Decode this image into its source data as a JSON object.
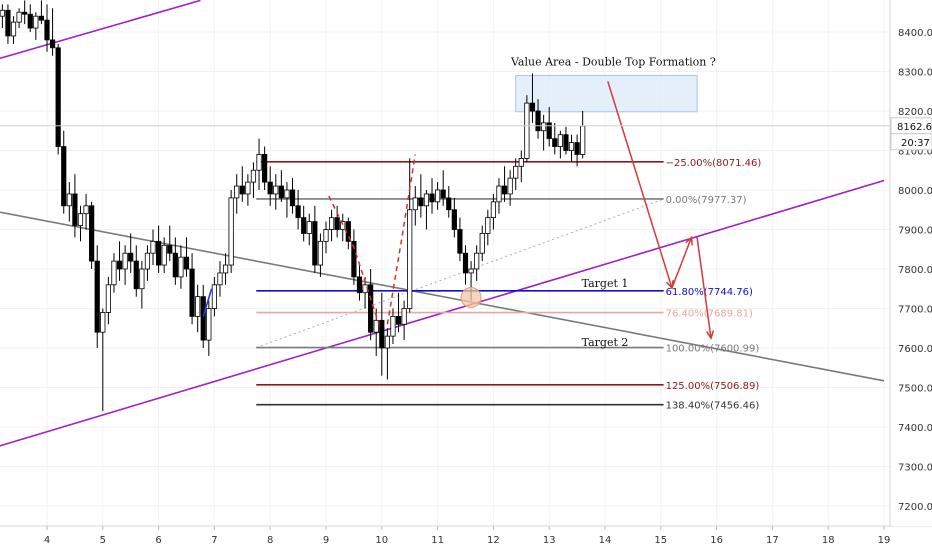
{
  "chart_data": {
    "type": "candlestick",
    "y_axis": {
      "ticks": [
        "8400.00",
        "8300.00",
        "8200.00",
        "8100.00",
        "8000.00",
        "7900.00",
        "7800.00",
        "7700.00",
        "7600.00",
        "7500.00",
        "7400.00",
        "7300.00",
        "7200.00"
      ],
      "range": [
        7150,
        8480
      ]
    },
    "x_axis": {
      "ticks": [
        "4",
        "5",
        "6",
        "7",
        "8",
        "9",
        "10",
        "11",
        "12",
        "13",
        "14",
        "15",
        "16",
        "17",
        "18",
        "19"
      ],
      "range": [
        3.2,
        19.0
      ]
    },
    "price_tags": [
      {
        "label": "8162.63",
        "kind": "last_price"
      },
      {
        "label": "20:37",
        "kind": "countdown"
      }
    ],
    "fib_levels": [
      {
        "label": "−25.00%(8071.46)",
        "value": 8071.46,
        "x_start": 7.75,
        "x_end": 15.05,
        "color": "#8b1a1a"
      },
      {
        "label": "0.00%(7977.37)",
        "value": 7977.37,
        "x_start": 7.75,
        "x_end": 15.05,
        "color": "#7a7a7a"
      },
      {
        "label": "61.80%(7744.76)",
        "value": 7744.76,
        "x_start": 7.75,
        "x_end": 15.05,
        "color": "#1010cc"
      },
      {
        "label": "76.40%(7689.81)",
        "value": 7689.81,
        "x_start": 7.75,
        "x_end": 15.05,
        "color": "#e8a8a0"
      },
      {
        "label": "100.00%(7600.99)",
        "value": 7600.99,
        "x_start": 7.75,
        "x_end": 15.05,
        "color": "#7a7a7a"
      },
      {
        "label": "125.00%(7506.89)",
        "value": 7506.89,
        "x_start": 7.75,
        "x_end": 15.05,
        "color": "#8b1a1a"
      },
      {
        "label": "138.40%(7456.46)",
        "value": 7456.46,
        "x_start": 7.75,
        "x_end": 15.05,
        "color": "#333333"
      }
    ],
    "trendlines": [
      {
        "name": "upper-channel",
        "points": [
          [
            3.15,
            8333
          ],
          [
            6.75,
            8480
          ]
        ],
        "color": "#a020c8"
      },
      {
        "name": "lower-channel",
        "points": [
          [
            3.15,
            7352
          ],
          [
            19.0,
            8024
          ]
        ],
        "color": "#a020c8"
      },
      {
        "name": "descending-line",
        "points": [
          [
            3.15,
            7944
          ],
          [
            19.0,
            7517
          ]
        ],
        "color": "#7a7a7a"
      },
      {
        "name": "dotted-trend",
        "points": [
          [
            7.75,
            7601
          ],
          [
            15.05,
            7977
          ]
        ],
        "color": "#aaaaaa",
        "style": "dotted"
      }
    ],
    "annotations": [
      {
        "text": "Value Area - Double Top Formation ?",
        "x": 14.15,
        "y": 8315
      },
      {
        "text": "Target 1",
        "x": 14.0,
        "y": 7755
      },
      {
        "text": "Target 2",
        "x": 14.0,
        "y": 7605
      }
    ],
    "value_area": {
      "x": [
        12.4,
        15.65
      ],
      "y": [
        8198,
        8290
      ]
    },
    "circle_marker": {
      "x": 11.6,
      "y": 7728
    },
    "candles": [
      [
        3.2,
        8440,
        8470,
        8410,
        8455
      ],
      [
        3.3,
        8455,
        8470,
        8370,
        8390
      ],
      [
        3.4,
        8390,
        8440,
        8370,
        8425
      ],
      [
        3.5,
        8425,
        8460,
        8410,
        8450
      ],
      [
        3.6,
        8450,
        8480,
        8420,
        8445
      ],
      [
        3.7,
        8445,
        8470,
        8400,
        8410
      ],
      [
        3.8,
        8410,
        8450,
        8380,
        8440
      ],
      [
        3.9,
        8440,
        8480,
        8420,
        8430
      ],
      [
        4.0,
        8430,
        8470,
        8350,
        8380
      ],
      [
        4.1,
        8380,
        8460,
        8340,
        8360
      ],
      [
        4.2,
        8360,
        8370,
        8090,
        8110
      ],
      [
        4.3,
        8110,
        8150,
        7940,
        7960
      ],
      [
        4.4,
        7960,
        8020,
        7920,
        7990
      ],
      [
        4.5,
        7990,
        8040,
        7880,
        7910
      ],
      [
        4.6,
        7910,
        7960,
        7870,
        7940
      ],
      [
        4.7,
        7940,
        7990,
        7900,
        7960
      ],
      [
        4.8,
        7960,
        7970,
        7800,
        7820
      ],
      [
        4.9,
        7820,
        7860,
        7600,
        7640
      ],
      [
        5.0,
        7640,
        7700,
        7440,
        7690
      ],
      [
        5.1,
        7690,
        7780,
        7660,
        7760
      ],
      [
        5.2,
        7760,
        7840,
        7740,
        7820
      ],
      [
        5.3,
        7820,
        7870,
        7770,
        7800
      ],
      [
        5.4,
        7800,
        7860,
        7760,
        7840
      ],
      [
        5.5,
        7840,
        7890,
        7790,
        7820
      ],
      [
        5.6,
        7820,
        7860,
        7730,
        7750
      ],
      [
        5.7,
        7750,
        7820,
        7700,
        7800
      ],
      [
        5.8,
        7800,
        7860,
        7770,
        7840
      ],
      [
        5.9,
        7840,
        7900,
        7810,
        7870
      ],
      [
        6.0,
        7870,
        7910,
        7790,
        7810
      ],
      [
        6.1,
        7810,
        7880,
        7790,
        7860
      ],
      [
        6.2,
        7860,
        7910,
        7820,
        7840
      ],
      [
        6.3,
        7840,
        7880,
        7760,
        7780
      ],
      [
        6.4,
        7780,
        7860,
        7750,
        7830
      ],
      [
        6.5,
        7830,
        7880,
        7780,
        7800
      ],
      [
        6.6,
        7800,
        7840,
        7660,
        7680
      ],
      [
        6.7,
        7680,
        7760,
        7640,
        7730
      ],
      [
        6.8,
        7730,
        7760,
        7600,
        7620
      ],
      [
        6.9,
        7620,
        7720,
        7580,
        7700
      ],
      [
        7.0,
        7700,
        7780,
        7680,
        7760
      ],
      [
        7.1,
        7760,
        7820,
        7730,
        7790
      ],
      [
        7.2,
        7790,
        7840,
        7760,
        7810
      ],
      [
        7.3,
        7810,
        8000,
        7790,
        7980
      ],
      [
        7.4,
        7980,
        8040,
        7940,
        8010
      ],
      [
        7.5,
        8010,
        8060,
        7970,
        7990
      ],
      [
        7.6,
        7990,
        8040,
        7960,
        8020
      ],
      [
        7.7,
        8020,
        8070,
        7980,
        8050
      ],
      [
        7.8,
        8050,
        8130,
        8000,
        8090
      ],
      [
        7.9,
        8090,
        8110,
        8000,
        8020
      ],
      [
        8.0,
        8020,
        8060,
        7960,
        7990
      ],
      [
        8.1,
        7990,
        8040,
        7950,
        8010
      ],
      [
        8.2,
        8010,
        8050,
        7970,
        7980
      ],
      [
        8.3,
        7980,
        8020,
        7930,
        8000
      ],
      [
        8.4,
        8000,
        8030,
        7940,
        7960
      ],
      [
        8.5,
        7960,
        8000,
        7900,
        7930
      ],
      [
        8.6,
        7930,
        7960,
        7870,
        7890
      ],
      [
        8.7,
        7890,
        7940,
        7860,
        7920
      ],
      [
        8.8,
        7920,
        7960,
        7790,
        7810
      ],
      [
        8.9,
        7810,
        7890,
        7780,
        7870
      ],
      [
        9.0,
        7870,
        7920,
        7840,
        7900
      ],
      [
        9.1,
        7900,
        7950,
        7870,
        7930
      ],
      [
        9.2,
        7930,
        7960,
        7880,
        7900
      ],
      [
        9.3,
        7900,
        7940,
        7870,
        7920
      ],
      [
        9.4,
        7920,
        7930,
        7850,
        7870
      ],
      [
        9.5,
        7870,
        7900,
        7760,
        7780
      ],
      [
        9.6,
        7780,
        7810,
        7720,
        7740
      ],
      [
        9.7,
        7740,
        7780,
        7700,
        7760
      ],
      [
        9.8,
        7760,
        7800,
        7620,
        7640
      ],
      [
        9.9,
        7640,
        7700,
        7580,
        7670
      ],
      [
        10.0,
        7670,
        7740,
        7530,
        7600
      ],
      [
        10.1,
        7600,
        7650,
        7520,
        7630
      ],
      [
        10.2,
        7630,
        7700,
        7610,
        7680
      ],
      [
        10.3,
        7680,
        7740,
        7640,
        7660
      ],
      [
        10.4,
        7660,
        7720,
        7620,
        7700
      ],
      [
        10.5,
        7700,
        8080,
        7690,
        7950
      ],
      [
        10.6,
        7950,
        8010,
        7910,
        7980
      ],
      [
        10.7,
        7980,
        8040,
        7930,
        7960
      ],
      [
        10.8,
        7960,
        8000,
        7900,
        7990
      ],
      [
        10.9,
        7990,
        8030,
        7940,
        7970
      ],
      [
        11.0,
        7970,
        8020,
        7950,
        8000
      ],
      [
        11.1,
        8000,
        8050,
        7960,
        7980
      ],
      [
        11.2,
        7980,
        8010,
        7930,
        7950
      ],
      [
        11.3,
        7950,
        7980,
        7880,
        7900
      ],
      [
        11.4,
        7900,
        7930,
        7820,
        7840
      ],
      [
        11.5,
        7840,
        7860,
        7760,
        7790
      ],
      [
        11.6,
        7790,
        7820,
        7720,
        7800
      ],
      [
        11.7,
        7800,
        7860,
        7770,
        7840
      ],
      [
        11.8,
        7840,
        7910,
        7820,
        7890
      ],
      [
        11.9,
        7890,
        7950,
        7860,
        7930
      ],
      [
        12.0,
        7930,
        7990,
        7900,
        7970
      ],
      [
        12.1,
        7970,
        8030,
        7940,
        8010
      ],
      [
        12.2,
        8010,
        8060,
        7970,
        7990
      ],
      [
        12.3,
        7990,
        8050,
        7960,
        8030
      ],
      [
        12.4,
        8030,
        8080,
        8000,
        8060
      ],
      [
        12.5,
        8060,
        8100,
        8020,
        8080
      ],
      [
        12.6,
        8080,
        8240,
        8070,
        8220
      ],
      [
        12.7,
        8220,
        8295,
        8170,
        8200
      ],
      [
        12.8,
        8200,
        8230,
        8130,
        8150
      ],
      [
        12.9,
        8150,
        8190,
        8100,
        8170
      ],
      [
        13.0,
        8170,
        8210,
        8110,
        8130
      ],
      [
        13.1,
        8130,
        8170,
        8090,
        8110
      ],
      [
        13.2,
        8110,
        8150,
        8080,
        8140
      ],
      [
        13.3,
        8140,
        8160,
        8090,
        8100
      ],
      [
        13.4,
        8100,
        8140,
        8070,
        8120
      ],
      [
        13.5,
        8120,
        8140,
        8060,
        8090
      ],
      [
        13.6,
        8090,
        8200,
        8080,
        8162
      ]
    ]
  }
}
